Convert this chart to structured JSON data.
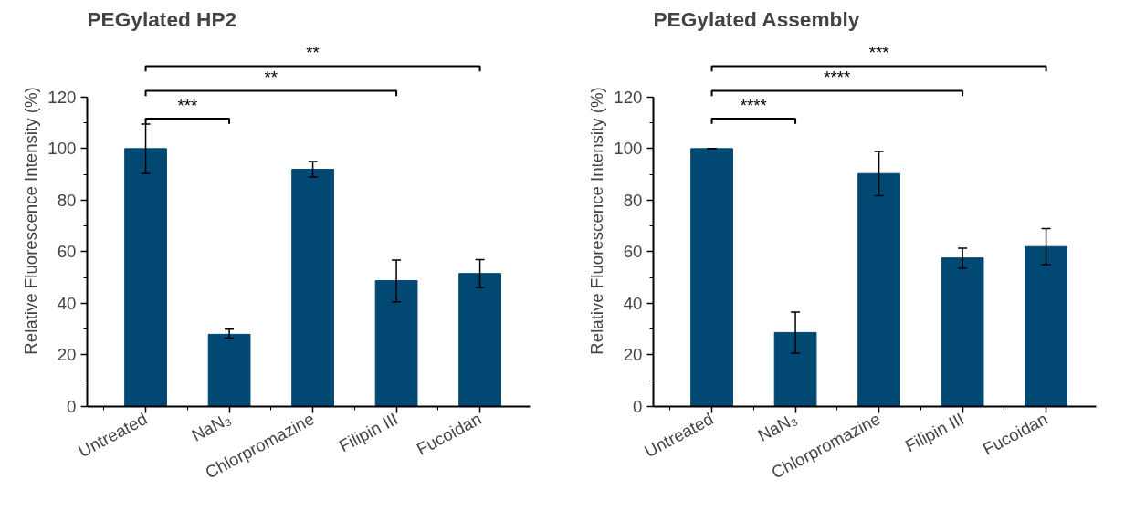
{
  "chart_data": [
    {
      "type": "bar",
      "title": "PEGylated HP2",
      "ylabel": "Relative Fluorescence Intensity (%)",
      "categories": [
        "Untreated",
        "NaN₃",
        "Chlorpromazine",
        "Filipin III",
        "Fucoidan"
      ],
      "values": [
        100,
        28,
        92,
        48.8,
        51.6
      ],
      "color": "#014872",
      "errors": [
        [
          90.3,
          109.5
        ],
        [
          26.5,
          30
        ],
        [
          89,
          95
        ],
        [
          40.6,
          56.8
        ],
        [
          46.2,
          57
        ]
      ],
      "ylim": [
        0,
        120
      ],
      "yticks": [
        0,
        20,
        40,
        60,
        80,
        100,
        120
      ],
      "grid": false,
      "annotations": [
        "***",
        "**",
        "**"
      ]
    },
    {
      "type": "bar",
      "title": "PEGylated Assembly",
      "ylabel": "Relative Fluorescence Intensity (%)",
      "categories": [
        "Untreated",
        "NaN₃",
        "Chlorpromazine",
        "Filipin III",
        "Fucoidan"
      ],
      "values": [
        100,
        28.7,
        90.3,
        57.6,
        62
      ],
      "color": "#014872",
      "errors": [
        [
          100,
          100
        ],
        [
          20.7,
          36.6
        ],
        [
          81.7,
          98.9
        ],
        [
          53.6,
          61.4
        ],
        [
          55,
          69
        ]
      ],
      "ylim": [
        0,
        120
      ],
      "yticks": [
        0,
        20,
        40,
        60,
        80,
        100,
        120
      ],
      "grid": false,
      "annotations": [
        "****",
        "****",
        "***"
      ]
    }
  ]
}
